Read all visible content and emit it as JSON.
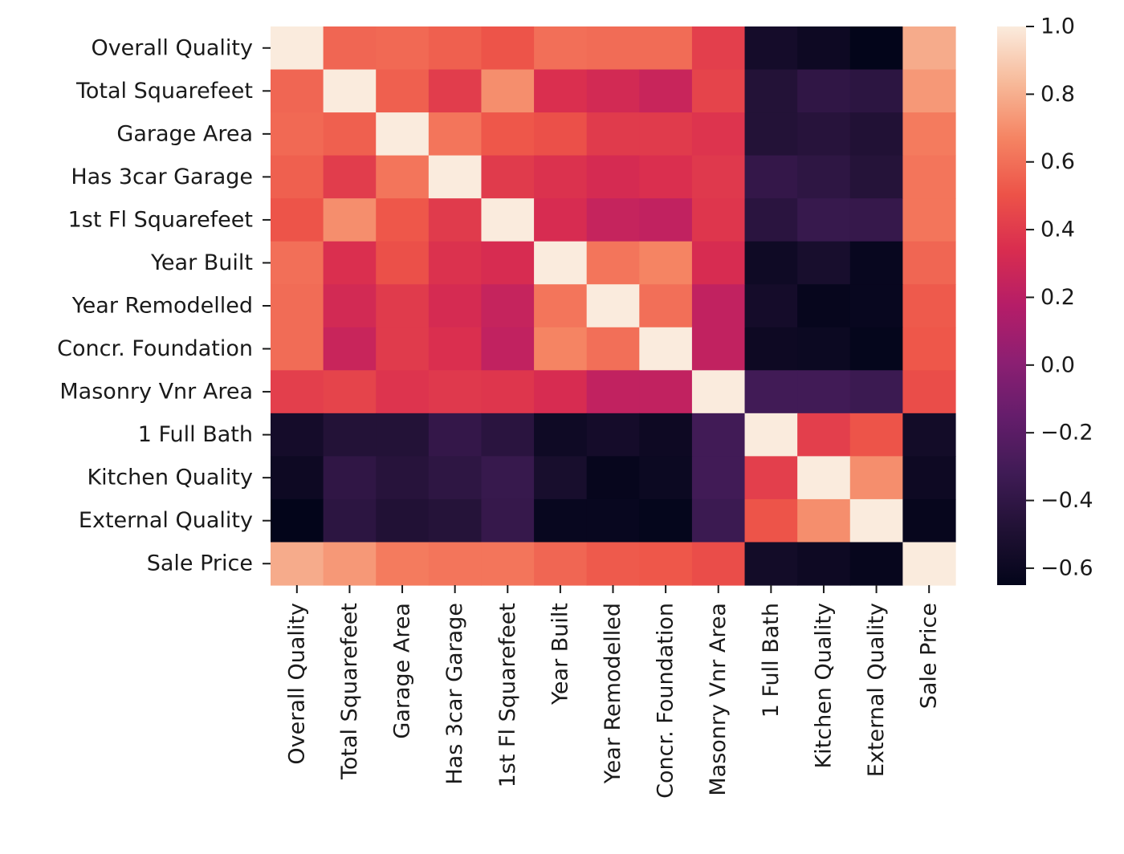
{
  "chart_data": {
    "type": "heatmap",
    "title": "",
    "xlabel": "",
    "ylabel": "",
    "rows": [
      "Overall Quality",
      "Total Squarefeet",
      "Garage Area",
      "Has 3car Garage",
      "1st Fl Squarefeet",
      "Year Built",
      "Year Remodelled",
      "Concr. Foundation",
      "Masonry Vnr Area",
      "1 Full Bath",
      "Kitchen Quality",
      "External Quality",
      "Sale Price"
    ],
    "columns": [
      "Overall Quality",
      "Total Squarefeet",
      "Garage Area",
      "Has 3car Garage",
      "1st Fl Squarefeet",
      "Year Built",
      "Year Remodelled",
      "Concr. Foundation",
      "Masonry Vnr Area",
      "1 Full Bath",
      "Kitchen Quality",
      "External Quality",
      "Sale Price"
    ],
    "values": [
      [
        1.0,
        0.57,
        0.58,
        0.55,
        0.51,
        0.6,
        0.59,
        0.59,
        0.42,
        -0.55,
        -0.59,
        -0.65,
        0.79
      ],
      [
        0.57,
        1.0,
        0.55,
        0.41,
        0.7,
        0.35,
        0.31,
        0.26,
        0.44,
        -0.47,
        -0.4,
        -0.42,
        0.73
      ],
      [
        0.58,
        0.55,
        1.0,
        0.62,
        0.52,
        0.49,
        0.4,
        0.4,
        0.37,
        -0.47,
        -0.45,
        -0.48,
        0.64
      ],
      [
        0.55,
        0.41,
        0.62,
        1.0,
        0.4,
        0.36,
        0.32,
        0.35,
        0.39,
        -0.38,
        -0.41,
        -0.46,
        0.62
      ],
      [
        0.51,
        0.7,
        0.52,
        0.4,
        1.0,
        0.33,
        0.25,
        0.23,
        0.38,
        -0.43,
        -0.36,
        -0.37,
        0.62
      ],
      [
        0.6,
        0.35,
        0.49,
        0.36,
        0.33,
        1.0,
        0.62,
        0.67,
        0.33,
        -0.58,
        -0.53,
        -0.62,
        0.57
      ],
      [
        0.59,
        0.31,
        0.4,
        0.32,
        0.25,
        0.62,
        1.0,
        0.6,
        0.23,
        -0.55,
        -0.63,
        -0.62,
        0.53
      ],
      [
        0.59,
        0.26,
        0.4,
        0.35,
        0.23,
        0.67,
        0.6,
        1.0,
        0.23,
        -0.59,
        -0.6,
        -0.64,
        0.52
      ],
      [
        0.42,
        0.44,
        0.37,
        0.39,
        0.38,
        0.33,
        0.23,
        0.23,
        1.0,
        -0.31,
        -0.31,
        -0.34,
        0.48
      ],
      [
        -0.55,
        -0.47,
        -0.47,
        -0.38,
        -0.43,
        -0.58,
        -0.55,
        -0.59,
        -0.31,
        1.0,
        0.42,
        0.51,
        -0.56
      ],
      [
        -0.59,
        -0.4,
        -0.45,
        -0.41,
        -0.36,
        -0.53,
        -0.63,
        -0.6,
        -0.31,
        0.42,
        1.0,
        0.7,
        -0.59
      ],
      [
        -0.65,
        -0.42,
        -0.48,
        -0.46,
        -0.37,
        -0.62,
        -0.62,
        -0.64,
        -0.34,
        0.51,
        0.7,
        1.0,
        -0.63
      ],
      [
        0.79,
        0.73,
        0.64,
        0.62,
        0.62,
        0.57,
        0.53,
        0.52,
        0.48,
        -0.56,
        -0.59,
        -0.63,
        1.0
      ]
    ],
    "color_range": [
      -0.65,
      1.0
    ],
    "colorbar_ticks": [
      "1.0",
      "0.8",
      "0.6",
      "0.4",
      "0.2",
      "0.0",
      "−0.2",
      "−0.4",
      "−0.6"
    ],
    "colorbar_tick_values": [
      1.0,
      0.8,
      0.6,
      0.4,
      0.2,
      0.0,
      -0.2,
      -0.4,
      -0.6
    ],
    "colormap": "rocket",
    "grid": false
  }
}
